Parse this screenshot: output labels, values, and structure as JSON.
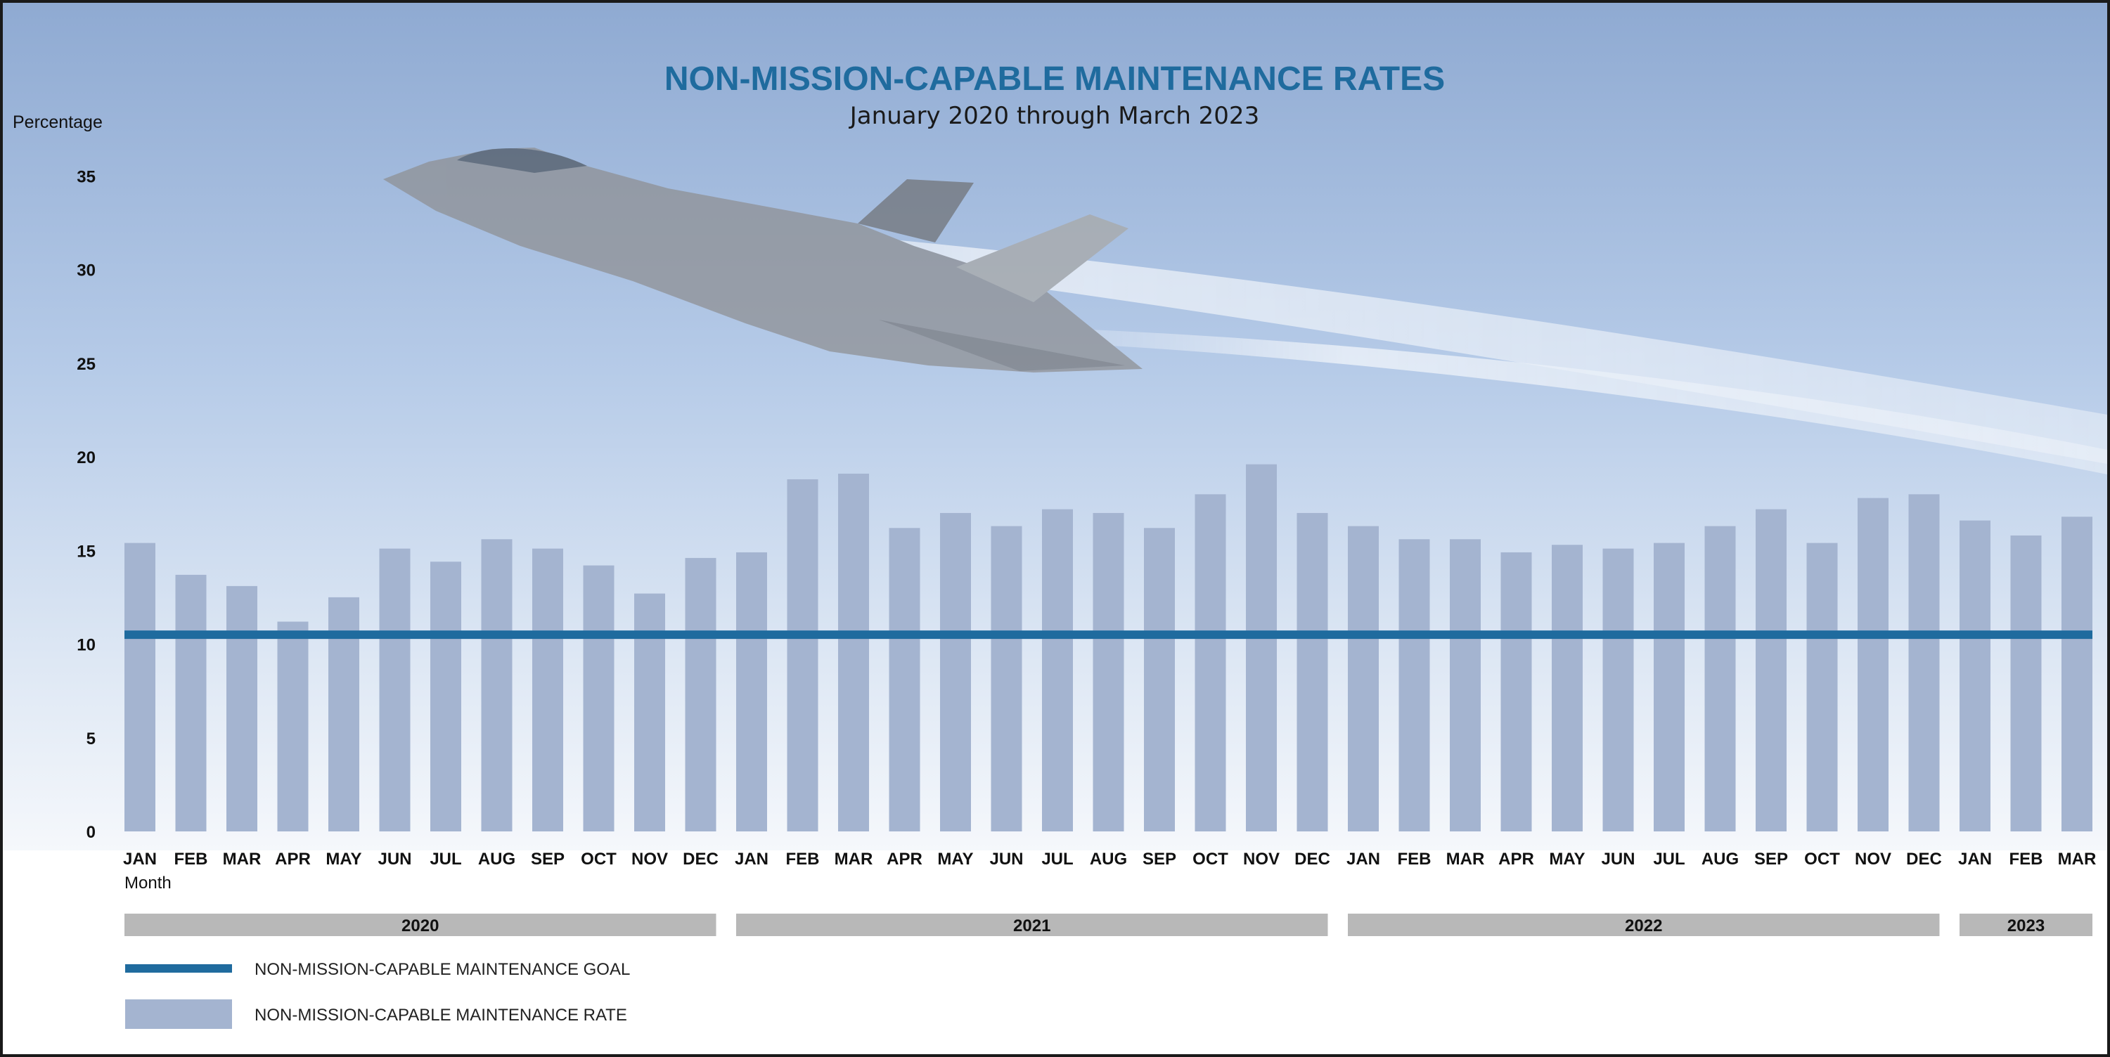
{
  "chart_data": {
    "type": "bar",
    "title": "NON-MISSION-CAPABLE MAINTENANCE RATES",
    "subtitle": "January 2020 through March 2023",
    "ylabel": "Percentage",
    "xlabel": "Month",
    "ylim": [
      0,
      35
    ],
    "yticks": [
      "0",
      "5",
      "10",
      "15",
      "20",
      "25",
      "30",
      "35"
    ],
    "grid": false,
    "legend_placement": "bottom-left",
    "categories": [
      "JAN",
      "FEB",
      "MAR",
      "APR",
      "MAY",
      "JUN",
      "JUL",
      "AUG",
      "SEP",
      "OCT",
      "NOV",
      "DEC",
      "JAN",
      "FEB",
      "MAR",
      "APR",
      "MAY",
      "JUN",
      "JUL",
      "AUG",
      "SEP",
      "OCT",
      "NOV",
      "DEC",
      "JAN",
      "FEB",
      "MAR",
      "APR",
      "MAY",
      "JUN",
      "JUL",
      "AUG",
      "SEP",
      "OCT",
      "NOV",
      "DEC",
      "JAN",
      "FEB",
      "MAR"
    ],
    "years": [
      {
        "label": "2020",
        "start": 0,
        "end": 11
      },
      {
        "label": "2021",
        "start": 12,
        "end": 23
      },
      {
        "label": "2022",
        "start": 24,
        "end": 35
      },
      {
        "label": "2023",
        "start": 36,
        "end": 38
      }
    ],
    "series": [
      {
        "name": "NON-MISSION-CAPABLE MAINTENANCE RATE",
        "kind": "bar",
        "color": "#a4b4d0",
        "values": [
          15.4,
          13.7,
          13.1,
          11.2,
          12.5,
          15.1,
          14.4,
          15.6,
          15.1,
          14.2,
          12.7,
          14.6,
          14.9,
          18.8,
          19.1,
          16.2,
          17.0,
          16.3,
          17.2,
          17.0,
          16.2,
          18.0,
          19.6,
          17.0,
          16.3,
          15.6,
          15.6,
          14.9,
          15.3,
          15.1,
          15.4,
          16.3,
          17.2,
          15.4,
          17.8,
          18.0,
          16.6,
          15.8,
          16.8
        ]
      },
      {
        "name": "NON-MISSION-CAPABLE MAINTENANCE GOAL",
        "kind": "line",
        "color": "#1f6b9e",
        "value": 10.5
      }
    ]
  }
}
